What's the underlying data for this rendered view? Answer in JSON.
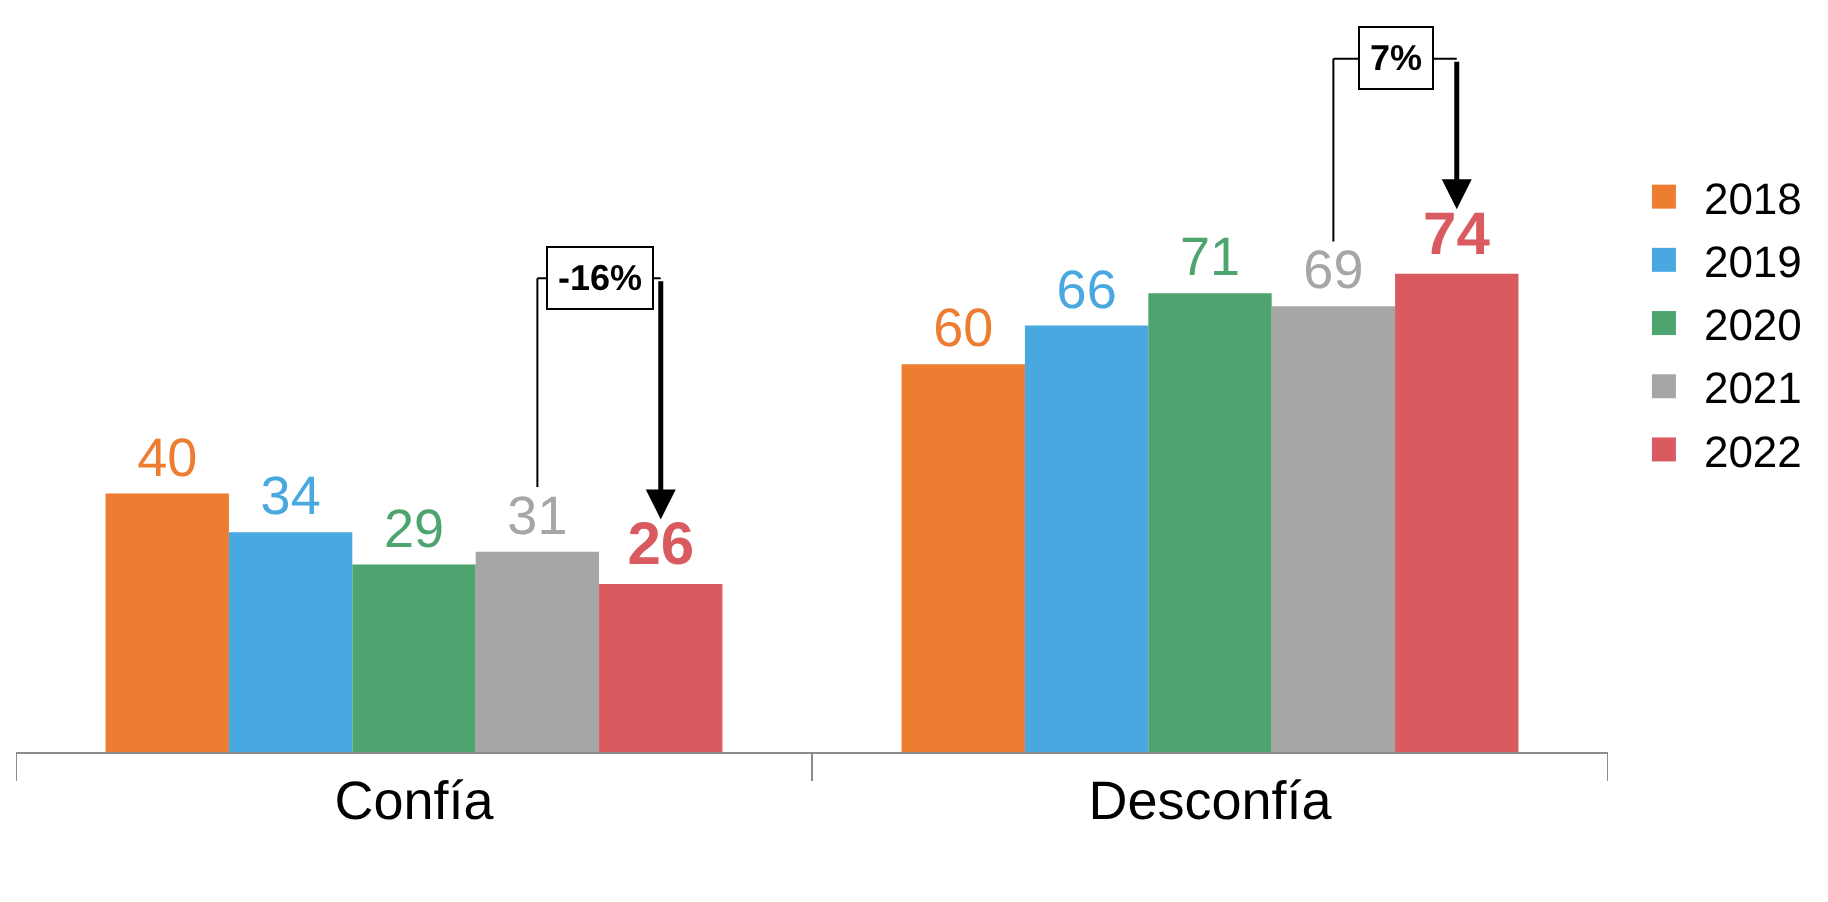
{
  "chart_data": {
    "type": "bar",
    "categories": [
      "Confía",
      "Desconfía"
    ],
    "series": [
      {
        "name": "2018",
        "color": "#ed7d31",
        "values": [
          40,
          60
        ]
      },
      {
        "name": "2019",
        "color": "#4aa8e0",
        "values": [
          34,
          66
        ]
      },
      {
        "name": "2020",
        "color": "#4ea46f",
        "values": [
          29,
          71
        ]
      },
      {
        "name": "2021",
        "color": "#a6a6a6",
        "values": [
          31,
          69
        ]
      },
      {
        "name": "2022",
        "color": "#d95b5f",
        "values": [
          26,
          74
        ]
      }
    ],
    "data_labels": true,
    "legend": "right",
    "annotations": [
      "-16%",
      "7%"
    ]
  }
}
